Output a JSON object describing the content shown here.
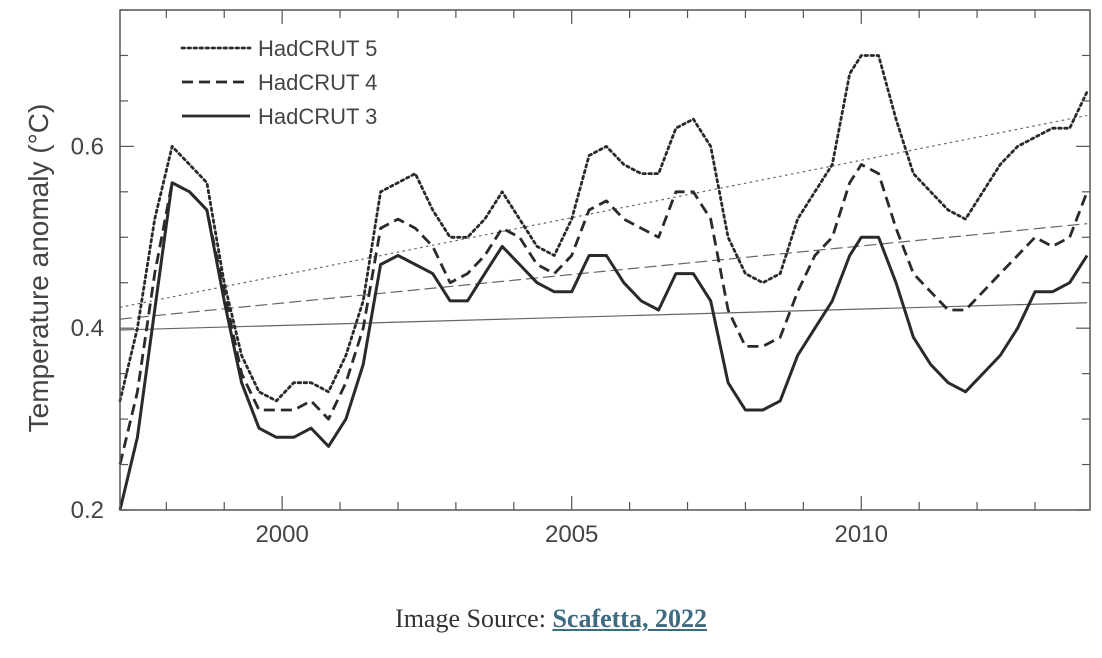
{
  "chart_data": {
    "type": "line",
    "title": "",
    "xlabel": "",
    "ylabel": "Temperature anomaly (°C)",
    "xlim": [
      1997.2,
      2013.95
    ],
    "ylim": [
      0.2,
      0.75
    ],
    "xticks": [
      2000,
      2005,
      2010
    ],
    "xtick_labels": [
      "2000",
      "2005",
      "2010"
    ],
    "yticks": [
      0.2,
      0.4,
      0.6
    ],
    "ytick_labels": [
      "0.2",
      "0.4",
      "0.6"
    ],
    "grid": false,
    "legend_position": "top-left",
    "series": [
      {
        "name": "HadCRUT 5",
        "style": "dotted",
        "points": [
          [
            1997.2,
            0.32
          ],
          [
            1997.5,
            0.4
          ],
          [
            1997.8,
            0.52
          ],
          [
            1998.1,
            0.6
          ],
          [
            1998.4,
            0.58
          ],
          [
            1998.7,
            0.56
          ],
          [
            1999.0,
            0.45
          ],
          [
            1999.3,
            0.37
          ],
          [
            1999.6,
            0.33
          ],
          [
            1999.9,
            0.32
          ],
          [
            2000.2,
            0.34
          ],
          [
            2000.5,
            0.34
          ],
          [
            2000.8,
            0.33
          ],
          [
            2001.1,
            0.37
          ],
          [
            2001.4,
            0.43
          ],
          [
            2001.7,
            0.55
          ],
          [
            2002.0,
            0.56
          ],
          [
            2002.3,
            0.57
          ],
          [
            2002.6,
            0.53
          ],
          [
            2002.9,
            0.5
          ],
          [
            2003.2,
            0.5
          ],
          [
            2003.5,
            0.52
          ],
          [
            2003.8,
            0.55
          ],
          [
            2004.1,
            0.52
          ],
          [
            2004.4,
            0.49
          ],
          [
            2004.7,
            0.48
          ],
          [
            2005.0,
            0.52
          ],
          [
            2005.3,
            0.59
          ],
          [
            2005.6,
            0.6
          ],
          [
            2005.9,
            0.58
          ],
          [
            2006.2,
            0.57
          ],
          [
            2006.5,
            0.57
          ],
          [
            2006.8,
            0.62
          ],
          [
            2007.1,
            0.63
          ],
          [
            2007.4,
            0.6
          ],
          [
            2007.7,
            0.5
          ],
          [
            2008.0,
            0.46
          ],
          [
            2008.3,
            0.45
          ],
          [
            2008.6,
            0.46
          ],
          [
            2008.9,
            0.52
          ],
          [
            2009.2,
            0.55
          ],
          [
            2009.5,
            0.58
          ],
          [
            2009.8,
            0.68
          ],
          [
            2010.0,
            0.7
          ],
          [
            2010.3,
            0.7
          ],
          [
            2010.6,
            0.63
          ],
          [
            2010.9,
            0.57
          ],
          [
            2011.2,
            0.55
          ],
          [
            2011.5,
            0.53
          ],
          [
            2011.8,
            0.52
          ],
          [
            2012.1,
            0.55
          ],
          [
            2012.4,
            0.58
          ],
          [
            2012.7,
            0.6
          ],
          [
            2013.0,
            0.61
          ],
          [
            2013.3,
            0.62
          ],
          [
            2013.6,
            0.62
          ],
          [
            2013.9,
            0.66
          ]
        ]
      },
      {
        "name": "HadCRUT 4",
        "style": "dashed",
        "points": [
          [
            1997.2,
            0.25
          ],
          [
            1997.5,
            0.33
          ],
          [
            1997.8,
            0.46
          ],
          [
            1998.1,
            0.56
          ],
          [
            1998.4,
            0.55
          ],
          [
            1998.7,
            0.53
          ],
          [
            1999.0,
            0.44
          ],
          [
            1999.3,
            0.35
          ],
          [
            1999.6,
            0.31
          ],
          [
            1999.9,
            0.31
          ],
          [
            2000.2,
            0.31
          ],
          [
            2000.5,
            0.32
          ],
          [
            2000.8,
            0.3
          ],
          [
            2001.1,
            0.34
          ],
          [
            2001.4,
            0.4
          ],
          [
            2001.7,
            0.51
          ],
          [
            2002.0,
            0.52
          ],
          [
            2002.3,
            0.51
          ],
          [
            2002.6,
            0.49
          ],
          [
            2002.9,
            0.45
          ],
          [
            2003.2,
            0.46
          ],
          [
            2003.5,
            0.48
          ],
          [
            2003.8,
            0.51
          ],
          [
            2004.1,
            0.5
          ],
          [
            2004.4,
            0.47
          ],
          [
            2004.7,
            0.46
          ],
          [
            2005.0,
            0.48
          ],
          [
            2005.3,
            0.53
          ],
          [
            2005.6,
            0.54
          ],
          [
            2005.9,
            0.52
          ],
          [
            2006.2,
            0.51
          ],
          [
            2006.5,
            0.5
          ],
          [
            2006.8,
            0.55
          ],
          [
            2007.1,
            0.55
          ],
          [
            2007.4,
            0.52
          ],
          [
            2007.7,
            0.42
          ],
          [
            2008.0,
            0.38
          ],
          [
            2008.3,
            0.38
          ],
          [
            2008.6,
            0.39
          ],
          [
            2008.9,
            0.44
          ],
          [
            2009.2,
            0.48
          ],
          [
            2009.5,
            0.5
          ],
          [
            2009.8,
            0.56
          ],
          [
            2010.0,
            0.58
          ],
          [
            2010.3,
            0.57
          ],
          [
            2010.6,
            0.51
          ],
          [
            2010.9,
            0.46
          ],
          [
            2011.2,
            0.44
          ],
          [
            2011.5,
            0.42
          ],
          [
            2011.8,
            0.42
          ],
          [
            2012.1,
            0.44
          ],
          [
            2012.4,
            0.46
          ],
          [
            2012.7,
            0.48
          ],
          [
            2013.0,
            0.5
          ],
          [
            2013.3,
            0.49
          ],
          [
            2013.6,
            0.5
          ],
          [
            2013.9,
            0.55
          ]
        ]
      },
      {
        "name": "HadCRUT 3",
        "style": "solid",
        "points": [
          [
            1997.2,
            0.2
          ],
          [
            1997.5,
            0.28
          ],
          [
            1997.8,
            0.42
          ],
          [
            1998.1,
            0.56
          ],
          [
            1998.4,
            0.55
          ],
          [
            1998.7,
            0.53
          ],
          [
            1999.0,
            0.43
          ],
          [
            1999.3,
            0.34
          ],
          [
            1999.6,
            0.29
          ],
          [
            1999.9,
            0.28
          ],
          [
            2000.2,
            0.28
          ],
          [
            2000.5,
            0.29
          ],
          [
            2000.8,
            0.27
          ],
          [
            2001.1,
            0.3
          ],
          [
            2001.4,
            0.36
          ],
          [
            2001.7,
            0.47
          ],
          [
            2002.0,
            0.48
          ],
          [
            2002.3,
            0.47
          ],
          [
            2002.6,
            0.46
          ],
          [
            2002.9,
            0.43
          ],
          [
            2003.2,
            0.43
          ],
          [
            2003.5,
            0.46
          ],
          [
            2003.8,
            0.49
          ],
          [
            2004.1,
            0.47
          ],
          [
            2004.4,
            0.45
          ],
          [
            2004.7,
            0.44
          ],
          [
            2005.0,
            0.44
          ],
          [
            2005.3,
            0.48
          ],
          [
            2005.6,
            0.48
          ],
          [
            2005.9,
            0.45
          ],
          [
            2006.2,
            0.43
          ],
          [
            2006.5,
            0.42
          ],
          [
            2006.8,
            0.46
          ],
          [
            2007.1,
            0.46
          ],
          [
            2007.4,
            0.43
          ],
          [
            2007.7,
            0.34
          ],
          [
            2008.0,
            0.31
          ],
          [
            2008.3,
            0.31
          ],
          [
            2008.6,
            0.32
          ],
          [
            2008.9,
            0.37
          ],
          [
            2009.2,
            0.4
          ],
          [
            2009.5,
            0.43
          ],
          [
            2009.8,
            0.48
          ],
          [
            2010.0,
            0.5
          ],
          [
            2010.3,
            0.5
          ],
          [
            2010.6,
            0.45
          ],
          [
            2010.9,
            0.39
          ],
          [
            2011.2,
            0.36
          ],
          [
            2011.5,
            0.34
          ],
          [
            2011.8,
            0.33
          ],
          [
            2012.1,
            0.35
          ],
          [
            2012.4,
            0.37
          ],
          [
            2012.7,
            0.4
          ],
          [
            2013.0,
            0.44
          ],
          [
            2013.3,
            0.44
          ],
          [
            2013.6,
            0.45
          ],
          [
            2013.9,
            0.48
          ]
        ]
      }
    ],
    "trend_lines": [
      {
        "series": "HadCRUT 5",
        "style": "dotted",
        "start": [
          1997.2,
          0.423
        ],
        "end": [
          2013.9,
          0.634
        ]
      },
      {
        "series": "HadCRUT 4",
        "style": "dashed",
        "start": [
          1997.2,
          0.41
        ],
        "end": [
          2013.9,
          0.515
        ]
      },
      {
        "series": "HadCRUT 3",
        "style": "solid",
        "start": [
          1997.2,
          0.398
        ],
        "end": [
          2013.9,
          0.428
        ]
      }
    ]
  },
  "caption": {
    "prefix": "Image Source: ",
    "link_text": "Scafetta, 2022"
  }
}
